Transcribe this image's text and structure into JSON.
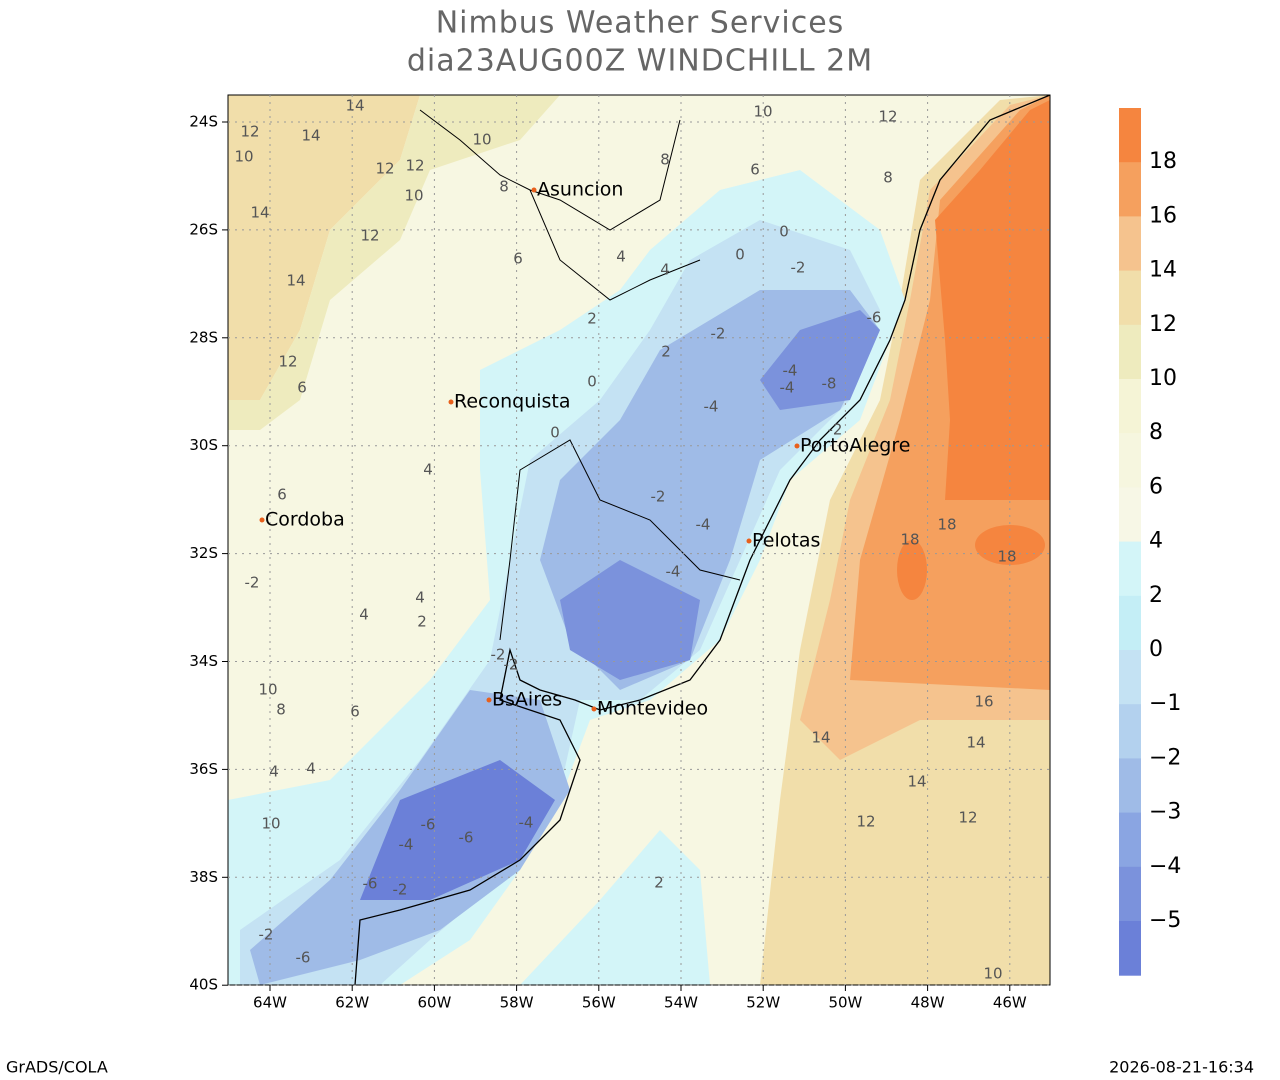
{
  "header": {
    "title": "Nimbus Weather Services",
    "subtitle": "dia23AUG00Z WINDCHILL 2M"
  },
  "map": {
    "lat_labels": [
      "24S",
      "26S",
      "28S",
      "30S",
      "32S",
      "34S",
      "36S",
      "38S",
      "40S"
    ],
    "lon_labels": [
      "64W",
      "62W",
      "60W",
      "58W",
      "56W",
      "54W",
      "52W",
      "50W",
      "48W",
      "46W"
    ],
    "cities": [
      "Asuncion",
      "Reconquista",
      "Cordoba",
      "PortoAlegre",
      "Pelotas",
      "BsAires",
      "Montevideo"
    ],
    "contour_labels": [
      "14",
      "12",
      "14",
      "10",
      "12",
      "12",
      "10",
      "14",
      "12",
      "14",
      "12",
      "10",
      "10",
      "12",
      "8",
      "8",
      "6",
      "4",
      "6",
      "4",
      "2",
      "2",
      "0",
      "0",
      "0",
      "-2",
      "-2",
      "-4",
      "-8",
      "-4",
      "-6",
      "-2",
      "-4",
      "-4",
      "-2",
      "-4",
      "-2",
      "-2",
      "18",
      "18",
      "18",
      "16",
      "14",
      "14",
      "14",
      "12",
      "-6",
      "-6",
      "-4",
      "-6",
      "-2",
      "-4",
      "-2",
      "-6",
      "6",
      "4",
      "2",
      "12",
      "10",
      "8",
      "6",
      "4",
      "4",
      "4",
      "2",
      "0",
      "-2",
      "10",
      "10",
      "8",
      "6",
      "4"
    ]
  },
  "colorbar": {
    "labels": [
      "18",
      "16",
      "14",
      "12",
      "10",
      "8",
      "6",
      "4",
      "2",
      "0",
      "−1",
      "−2",
      "−3",
      "−4",
      "−5"
    ],
    "colors": [
      "#f5853f",
      "#f5a05e",
      "#f5c38e",
      "#f1deaa",
      "#eeebbe",
      "#f5f4d6",
      "#f6f6df",
      "#f7f7e6",
      "#d3f5f8",
      "#c4eef6",
      "#c4e2f3",
      "#b3d1ee",
      "#9fbbe7",
      "#8aa5e2",
      "#7b92dc",
      "#6b80d8"
    ]
  },
  "footer": {
    "left": "GrADS/COLA",
    "right": "2026-08-21-16:34"
  }
}
